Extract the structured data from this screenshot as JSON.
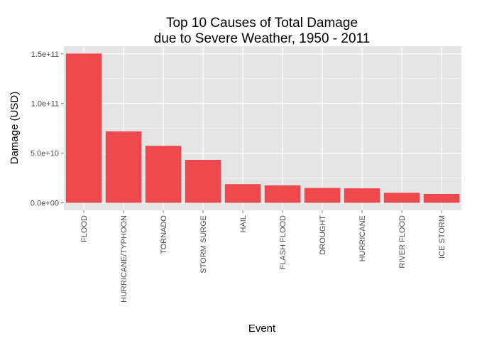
{
  "chart_data": {
    "type": "bar",
    "title_line1": "Top 10 Causes of Total Damage",
    "title_line2": "due to Severe Weather, 1950 - 2011",
    "xlabel": "Event",
    "ylabel": "Damage (USD)",
    "categories": [
      "FLOOD",
      "HURRICANE/TYPHOON",
      "TORNADO",
      "STORM SURGE",
      "HAIL",
      "FLASH FLOOD",
      "DROUGHT",
      "HURRICANE",
      "RIVER FLOOD",
      "ICE STORM"
    ],
    "values": [
      150300000000,
      71900000000,
      57400000000,
      43300000000,
      18800000000,
      17600000000,
      15000000000,
      14600000000,
      10100000000,
      8970000000
    ],
    "y_ticks": [
      0,
      50000000000,
      100000000000,
      150000000000
    ],
    "y_tick_labels": [
      "0.0e+00",
      "5.0e+10",
      "1.0e+11",
      "1.5e+11"
    ],
    "ylim": [
      -7500000000,
      157700000000
    ],
    "bar_color": "#ef484d",
    "panel_color": "#e5e5e5",
    "grid_color": "#ffffff",
    "grid": true,
    "legend": "none"
  }
}
